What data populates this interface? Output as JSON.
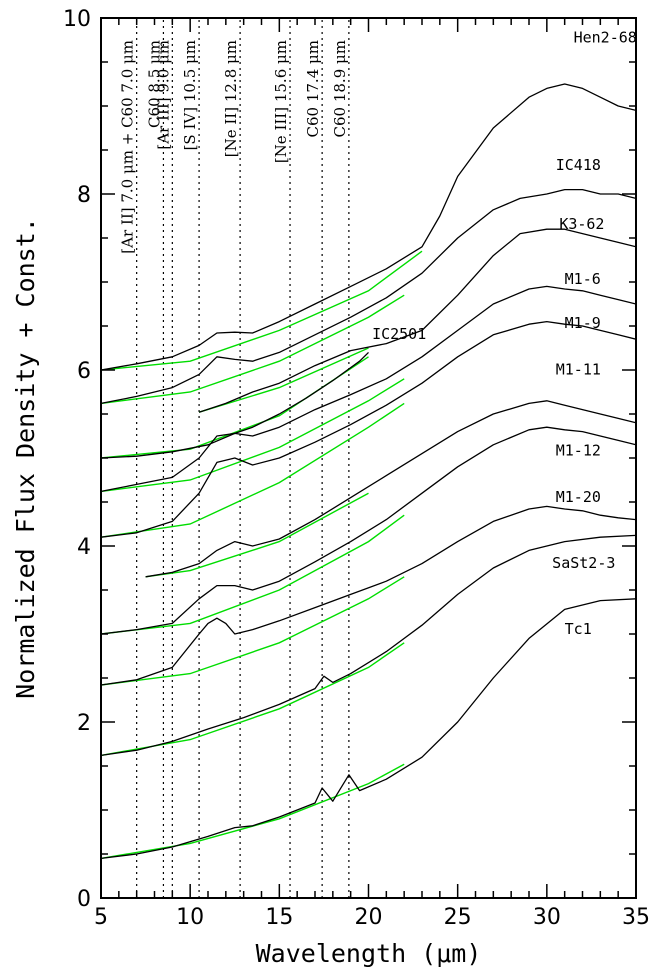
{
  "chart_data": {
    "type": "line",
    "title": "",
    "xlabel": "Wavelength (μm)",
    "ylabel": "Normalized Flux Density + Const.",
    "xlim": [
      5,
      35
    ],
    "ylim": [
      0,
      10
    ],
    "x_ticks": [
      5,
      10,
      15,
      20,
      25,
      30,
      35
    ],
    "x_tick_labels": [
      "5",
      "10",
      "15",
      "20",
      "25",
      "30",
      "35"
    ],
    "y_ticks": [
      0,
      2,
      4,
      6,
      8,
      10
    ],
    "y_tick_labels": [
      "0",
      "2",
      "4",
      "6",
      "8",
      "10"
    ],
    "grid": false,
    "legend": "none",
    "colors": {
      "spectrum": "#000000",
      "continuum": "#00dd00",
      "marker": "#000000"
    },
    "line_markers": [
      {
        "wavelength": 7.0,
        "label": "[Ar II] 7.0 μm + C60 7.0 μm",
        "style": "dotted"
      },
      {
        "wavelength": 8.5,
        "label": "C60 8.5 μm",
        "style": "dotted"
      },
      {
        "wavelength": 9.0,
        "label": "[Ar III] 9.0 μm",
        "style": "dotted"
      },
      {
        "wavelength": 10.5,
        "label": "[S IV] 10.5 μm",
        "style": "dotted"
      },
      {
        "wavelength": 12.8,
        "label": "[Ne II] 12.8 μm",
        "style": "dotted"
      },
      {
        "wavelength": 15.6,
        "label": "[Ne III] 15.6 μm",
        "style": "dotted"
      },
      {
        "wavelength": 17.4,
        "label": "C60 17.4 μm",
        "style": "dotted"
      },
      {
        "wavelength": 18.9,
        "label": "C60 18.9 μm",
        "style": "dotted"
      }
    ],
    "series": [
      {
        "name": "Hen2-68",
        "label_x": 31.5,
        "label_y": 9.72,
        "x": [
          5.0,
          7.0,
          9.0,
          10.5,
          11.5,
          12.5,
          13.5,
          15.0,
          17.0,
          19.0,
          21.0,
          23.0,
          24.0,
          25.0,
          27.0,
          29.0,
          30.0,
          31.0,
          32.0,
          33.0,
          34.0,
          35.0
        ],
        "y": [
          6.0,
          6.07,
          6.15,
          6.28,
          6.42,
          6.43,
          6.42,
          6.55,
          6.75,
          6.95,
          7.15,
          7.4,
          7.75,
          8.2,
          8.75,
          9.1,
          9.2,
          9.25,
          9.2,
          9.1,
          9.0,
          8.95
        ],
        "continuum_x": [
          5.0,
          10.0,
          15.0,
          20.0,
          23.0
        ],
        "continuum_y": [
          6.0,
          6.1,
          6.45,
          6.9,
          7.35
        ]
      },
      {
        "name": "IC418",
        "label_x": 30.5,
        "label_y": 8.27,
        "x": [
          5.0,
          7.0,
          9.0,
          10.5,
          11.5,
          12.5,
          13.5,
          15.0,
          17.0,
          19.0,
          21.0,
          23.0,
          25.0,
          27.0,
          28.5,
          30.0,
          31.0,
          32.0,
          33.0,
          34.0,
          35.0
        ],
        "y": [
          5.62,
          5.7,
          5.8,
          5.95,
          6.15,
          6.12,
          6.1,
          6.2,
          6.4,
          6.6,
          6.82,
          7.1,
          7.5,
          7.82,
          7.95,
          8.0,
          8.05,
          8.05,
          8.0,
          8.0,
          7.95
        ],
        "continuum_x": [
          5.0,
          10.0,
          15.0,
          20.0,
          22.0
        ],
        "continuum_y": [
          5.62,
          5.75,
          6.1,
          6.6,
          6.85
        ]
      },
      {
        "name": "K3-62",
        "label_x": 30.7,
        "label_y": 7.6,
        "x": [
          10.5,
          12.0,
          13.5,
          15.0,
          17.0,
          19.0,
          21.0,
          23.0,
          25.0,
          27.0,
          28.5,
          30.0,
          31.0,
          32.0,
          33.0,
          34.0,
          35.0
        ],
        "y": [
          5.52,
          5.62,
          5.75,
          5.85,
          6.05,
          6.22,
          6.3,
          6.45,
          6.85,
          7.3,
          7.55,
          7.6,
          7.6,
          7.55,
          7.5,
          7.45,
          7.4
        ],
        "continuum_x": [
          10.5,
          15.0,
          20.0
        ],
        "continuum_y": [
          5.52,
          5.8,
          6.25
        ]
      },
      {
        "name": "IC2501",
        "label_x": 20.2,
        "label_y": 6.35,
        "x": [
          5.0,
          7.0,
          9.0,
          11.0,
          12.5,
          13.5,
          15.0,
          16.5,
          18.0,
          19.5,
          20.0
        ],
        "y": [
          5.0,
          5.02,
          5.07,
          5.15,
          5.28,
          5.35,
          5.5,
          5.68,
          5.88,
          6.1,
          6.2
        ],
        "continuum_x": [
          5.0,
          10.0,
          15.0,
          20.0
        ],
        "continuum_y": [
          5.0,
          5.1,
          5.48,
          6.15
        ]
      },
      {
        "name": "M1-6",
        "label_x": 31.0,
        "label_y": 6.98,
        "x": [
          5.0,
          7.0,
          9.0,
          10.5,
          11.5,
          12.5,
          13.5,
          15.0,
          17.0,
          19.0,
          21.0,
          23.0,
          25.0,
          27.0,
          29.0,
          30.0,
          31.0,
          32.0,
          33.0,
          34.0,
          35.0
        ],
        "y": [
          4.62,
          4.7,
          4.78,
          5.0,
          5.25,
          5.28,
          5.25,
          5.35,
          5.55,
          5.72,
          5.9,
          6.15,
          6.45,
          6.75,
          6.92,
          6.95,
          6.92,
          6.9,
          6.85,
          6.8,
          6.75
        ],
        "continuum_x": [
          5.0,
          10.0,
          15.0,
          20.0,
          22.0
        ],
        "continuum_y": [
          4.62,
          4.75,
          5.12,
          5.65,
          5.9
        ]
      },
      {
        "name": "M1-9",
        "label_x": 31.0,
        "label_y": 6.48,
        "x": [
          5.0,
          7.0,
          9.0,
          10.5,
          11.5,
          12.5,
          13.5,
          15.0,
          17.0,
          19.0,
          21.0,
          23.0,
          25.0,
          27.0,
          29.0,
          30.0,
          31.0,
          32.0,
          33.0,
          34.0,
          35.0
        ],
        "y": [
          4.1,
          4.15,
          4.28,
          4.6,
          4.95,
          5.0,
          4.92,
          5.0,
          5.18,
          5.38,
          5.6,
          5.85,
          6.15,
          6.4,
          6.52,
          6.55,
          6.52,
          6.5,
          6.45,
          6.4,
          6.35
        ],
        "continuum_x": [
          5.0,
          10.0,
          15.0,
          20.0,
          22.0
        ],
        "continuum_y": [
          4.1,
          4.25,
          4.72,
          5.35,
          5.62
        ]
      },
      {
        "name": "M1-11",
        "label_x": 30.5,
        "label_y": 5.95,
        "x": [
          7.5,
          9.0,
          10.5,
          11.5,
          12.5,
          13.5,
          15.0,
          17.0,
          19.0,
          21.0,
          23.0,
          25.0,
          27.0,
          29.0,
          30.0,
          31.0,
          32.0,
          33.0,
          34.0,
          35.0
        ],
        "y": [
          3.65,
          3.7,
          3.8,
          3.95,
          4.05,
          4.0,
          4.08,
          4.3,
          4.55,
          4.8,
          5.05,
          5.3,
          5.5,
          5.62,
          5.65,
          5.6,
          5.55,
          5.5,
          5.45,
          5.4
        ],
        "continuum_x": [
          7.5,
          10.0,
          15.0,
          20.0
        ],
        "continuum_y": [
          3.65,
          3.72,
          4.05,
          4.6
        ]
      },
      {
        "name": "M1-12",
        "label_x": 30.5,
        "label_y": 5.03,
        "x": [
          5.0,
          7.0,
          9.0,
          10.5,
          11.5,
          12.5,
          13.5,
          15.0,
          17.0,
          19.0,
          21.0,
          23.0,
          25.0,
          27.0,
          29.0,
          30.0,
          31.0,
          32.0,
          33.0,
          34.0,
          35.0
        ],
        "y": [
          3.0,
          3.05,
          3.12,
          3.4,
          3.55,
          3.55,
          3.5,
          3.6,
          3.82,
          4.05,
          4.3,
          4.6,
          4.9,
          5.15,
          5.32,
          5.35,
          5.32,
          5.3,
          5.25,
          5.2,
          5.15
        ],
        "continuum_x": [
          5.0,
          10.0,
          15.0,
          20.0,
          22.0
        ],
        "continuum_y": [
          3.0,
          3.12,
          3.5,
          4.05,
          4.35
        ]
      },
      {
        "name": "M1-20",
        "label_x": 30.5,
        "label_y": 4.5,
        "x": [
          5.0,
          7.0,
          9.0,
          10.5,
          11.0,
          11.5,
          12.0,
          12.5,
          13.5,
          15.0,
          17.0,
          19.0,
          21.0,
          23.0,
          25.0,
          27.0,
          29.0,
          30.0,
          31.0,
          32.0,
          33.0,
          34.0,
          35.0
        ],
        "y": [
          2.42,
          2.48,
          2.62,
          3.0,
          3.12,
          3.18,
          3.12,
          3.0,
          3.05,
          3.15,
          3.3,
          3.45,
          3.6,
          3.8,
          4.05,
          4.28,
          4.42,
          4.45,
          4.42,
          4.4,
          4.35,
          4.32,
          4.3
        ],
        "continuum_x": [
          5.0,
          10.0,
          15.0,
          20.0,
          22.0
        ],
        "continuum_y": [
          2.42,
          2.55,
          2.9,
          3.4,
          3.65
        ]
      },
      {
        "name": "SaSt2-3",
        "label_x": 30.3,
        "label_y": 3.75,
        "x": [
          5.0,
          7.0,
          9.0,
          11.0,
          13.0,
          15.0,
          17.0,
          17.5,
          18.0,
          19.0,
          21.0,
          23.0,
          25.0,
          27.0,
          29.0,
          31.0,
          33.0,
          35.0
        ],
        "y": [
          1.62,
          1.68,
          1.78,
          1.92,
          2.05,
          2.2,
          2.38,
          2.52,
          2.45,
          2.55,
          2.8,
          3.1,
          3.45,
          3.75,
          3.95,
          4.05,
          4.1,
          4.12
        ],
        "continuum_x": [
          5.0,
          10.0,
          15.0,
          20.0,
          22.0
        ],
        "continuum_y": [
          1.62,
          1.8,
          2.15,
          2.62,
          2.9
        ]
      },
      {
        "name": "Tc1",
        "label_x": 31.0,
        "label_y": 3.0,
        "x": [
          5.0,
          7.0,
          9.0,
          11.0,
          12.5,
          13.5,
          15.0,
          17.0,
          17.4,
          18.0,
          18.9,
          19.5,
          21.0,
          23.0,
          25.0,
          27.0,
          29.0,
          31.0,
          33.0,
          35.0
        ],
        "y": [
          0.45,
          0.5,
          0.58,
          0.7,
          0.8,
          0.82,
          0.92,
          1.08,
          1.25,
          1.1,
          1.4,
          1.22,
          1.35,
          1.6,
          2.0,
          2.5,
          2.95,
          3.28,
          3.38,
          3.4
        ],
        "continuum_x": [
          5.0,
          10.0,
          15.0,
          20.0,
          22.0
        ],
        "continuum_y": [
          0.45,
          0.62,
          0.9,
          1.3,
          1.52
        ]
      }
    ]
  }
}
